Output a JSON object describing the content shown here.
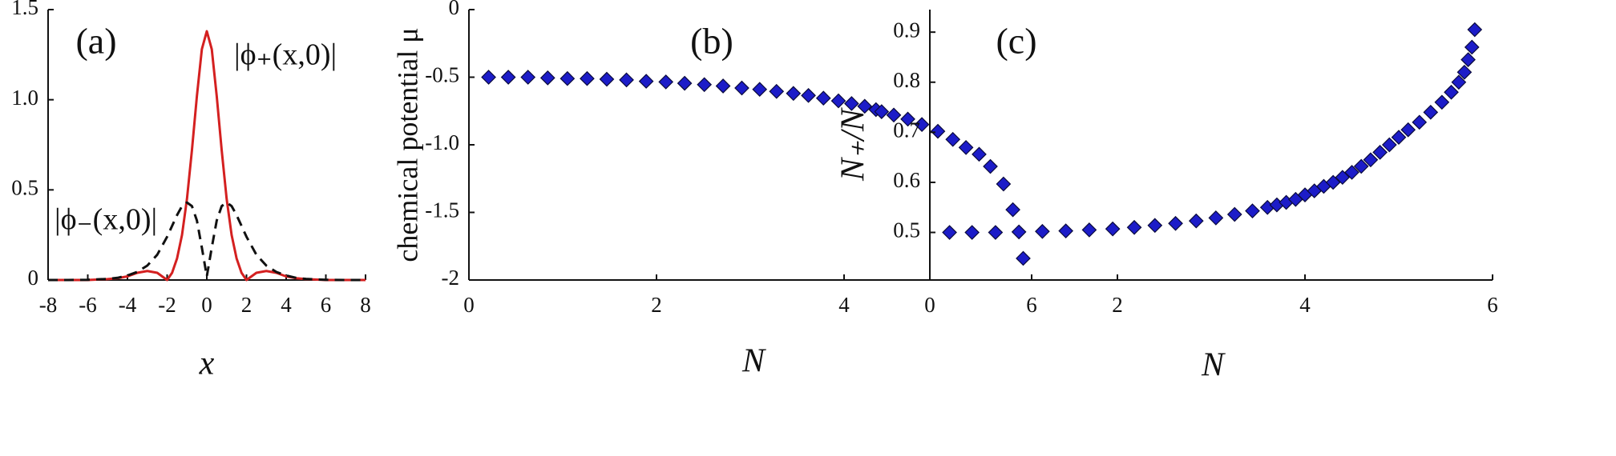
{
  "chart_data": [
    {
      "type": "line",
      "annotation": "(a)",
      "xlabel": "x",
      "xlim": [
        -8,
        8
      ],
      "xticks": [
        -8,
        -6,
        -4,
        -2,
        0,
        2,
        4,
        6,
        8
      ],
      "ylim": [
        0,
        1.5
      ],
      "yticks": [
        0,
        0.5,
        {
          "value": 1,
          "label": "1.0"
        },
        1.5
      ],
      "x": [
        -8,
        -7,
        -6,
        -5,
        -4.5,
        -4,
        -3.5,
        -3,
        -2.5,
        -2.25,
        -2,
        -1.75,
        -1.5,
        -1.25,
        -1,
        -0.75,
        -0.5,
        -0.25,
        0,
        0.25,
        0.5,
        0.75,
        1,
        1.25,
        1.5,
        1.75,
        2,
        2.25,
        2.5,
        3,
        3.5,
        4,
        4.5,
        5,
        6,
        7,
        8
      ],
      "series": [
        {
          "name": "|ϕ₊(x,0)|",
          "color": "#d42020",
          "dashed": false,
          "values": [
            0,
            0,
            0,
            0.005,
            0.01,
            0.02,
            0.04,
            0.05,
            0.04,
            0.02,
            0,
            0.04,
            0.12,
            0.25,
            0.45,
            0.72,
            1.02,
            1.28,
            1.38,
            1.28,
            1.02,
            0.72,
            0.45,
            0.25,
            0.12,
            0.04,
            0,
            0.02,
            0.04,
            0.05,
            0.04,
            0.02,
            0.01,
            0.005,
            0,
            0,
            0
          ]
        },
        {
          "name": "|ϕ₋(x,0)|",
          "color": "#111111",
          "dashed": true,
          "values": [
            0,
            0,
            0.001,
            0.006,
            0.012,
            0.025,
            0.045,
            0.08,
            0.14,
            0.19,
            0.24,
            0.3,
            0.36,
            0.41,
            0.43,
            0.41,
            0.33,
            0.18,
            0.02,
            0.18,
            0.33,
            0.41,
            0.43,
            0.41,
            0.36,
            0.3,
            0.24,
            0.19,
            0.14,
            0.08,
            0.045,
            0.025,
            0.012,
            0.006,
            0.001,
            0,
            0
          ]
        }
      ]
    },
    {
      "type": "scatter",
      "annotation": "(b)",
      "xlabel": "N",
      "ylabel": "chemical potential μ",
      "xlim": [
        0,
        6
      ],
      "xticks": [
        0,
        2,
        4,
        6
      ],
      "ylim": [
        -2,
        0
      ],
      "yticks": [
        0,
        -0.5,
        {
          "value": -1,
          "label": "-1.0"
        },
        -1.5,
        -2
      ],
      "color": "#1c1cc8",
      "x": [
        0.21,
        0.42,
        0.63,
        0.84,
        1.05,
        1.26,
        1.47,
        1.68,
        1.89,
        2.1,
        2.3,
        2.51,
        2.71,
        2.91,
        3.1,
        3.28,
        3.46,
        3.62,
        3.78,
        3.94,
        4.08,
        4.22,
        4.34,
        4.4,
        4.53,
        4.68,
        4.83,
        5.0,
        5.16,
        5.3,
        5.44,
        5.56,
        5.7,
        5.8,
        5.91
      ],
      "values": [
        -0.5,
        -0.5,
        -0.5,
        -0.505,
        -0.51,
        -0.51,
        -0.515,
        -0.52,
        -0.53,
        -0.535,
        -0.545,
        -0.555,
        -0.565,
        -0.58,
        -0.59,
        -0.605,
        -0.62,
        -0.635,
        -0.655,
        -0.675,
        -0.695,
        -0.715,
        -0.74,
        -0.755,
        -0.78,
        -0.81,
        -0.85,
        -0.9,
        -0.96,
        -1.02,
        -1.07,
        -1.16,
        -1.29,
        -1.48,
        -1.84
      ]
    },
    {
      "type": "scatter",
      "annotation": "(c)",
      "xlabel": "N",
      "ylabel": "N₊/N",
      "xlim": [
        0,
        6
      ],
      "xticks": [
        0,
        2,
        4,
        6
      ],
      "ylim": [
        0.405,
        0.945
      ],
      "yticks": [
        0.5,
        0.6,
        0.7,
        0.8,
        0.9
      ],
      "color": "#1c1cc8",
      "x": [
        0.21,
        0.45,
        0.7,
        0.95,
        1.2,
        1.45,
        1.7,
        1.95,
        2.18,
        2.4,
        2.62,
        2.84,
        3.05,
        3.25,
        3.44,
        3.6,
        3.7,
        3.8,
        3.9,
        4.0,
        4.1,
        4.2,
        4.3,
        4.4,
        4.5,
        4.6,
        4.7,
        4.8,
        4.9,
        5.0,
        5.1,
        5.22,
        5.34,
        5.46,
        5.56,
        5.64,
        5.7,
        5.74,
        5.78,
        5.81
      ],
      "values": [
        0.5,
        0.5,
        0.5,
        0.501,
        0.502,
        0.503,
        0.505,
        0.507,
        0.51,
        0.514,
        0.518,
        0.523,
        0.529,
        0.536,
        0.543,
        0.55,
        0.555,
        0.56,
        0.566,
        0.575,
        0.583,
        0.592,
        0.6,
        0.61,
        0.62,
        0.632,
        0.645,
        0.66,
        0.675,
        0.69,
        0.705,
        0.72,
        0.74,
        0.76,
        0.78,
        0.8,
        0.82,
        0.845,
        0.87,
        0.905
      ]
    }
  ]
}
